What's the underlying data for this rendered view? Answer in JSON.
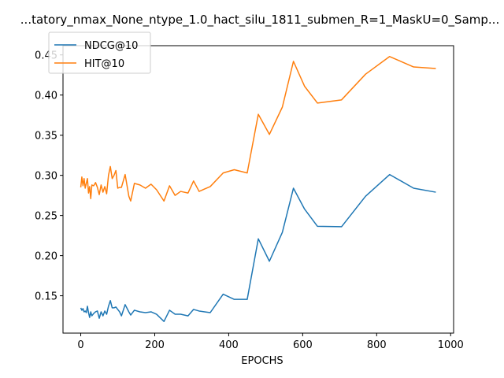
{
  "chart_data": {
    "type": "line",
    "title": "...tatory_nmax_None_ntype_1.0_hact_silu_1811_submen_R=1_MaskU=0_Samp...",
    "xlabel": "EPOCHS",
    "ylabel": "",
    "xlim": [
      -48,
      1008
    ],
    "ylim": [
      0.1035,
      0.4615
    ],
    "xticks": [
      0,
      200,
      400,
      600,
      800,
      1000
    ],
    "yticks": [
      0.15,
      0.2,
      0.25,
      0.3,
      0.35,
      0.4,
      0.45
    ],
    "ytick_labels": [
      "0.15",
      "0.20",
      "0.25",
      "0.30",
      "0.35",
      "0.40",
      "0.45"
    ],
    "grid": false,
    "legend_position": "top-left",
    "series": [
      {
        "name": "NDCG@10",
        "color": "#1f77b4",
        "x": [
          0,
          3,
          6,
          9,
          12,
          15,
          18,
          21,
          24,
          27,
          30,
          35,
          40,
          45,
          50,
          55,
          60,
          65,
          70,
          75,
          80,
          85,
          90,
          95,
          100,
          105,
          110,
          120,
          130,
          135,
          145,
          160,
          175,
          190,
          205,
          225,
          240,
          255,
          270,
          290,
          305,
          320,
          335,
          350,
          385,
          415,
          450,
          480,
          510,
          545,
          575,
          605,
          640,
          705,
          770,
          835,
          900,
          960
        ],
        "y": [
          0.135,
          0.132,
          0.134,
          0.13,
          0.131,
          0.129,
          0.137,
          0.129,
          0.123,
          0.13,
          0.125,
          0.128,
          0.13,
          0.131,
          0.122,
          0.13,
          0.125,
          0.131,
          0.127,
          0.137,
          0.144,
          0.135,
          0.135,
          0.136,
          0.133,
          0.13,
          0.125,
          0.139,
          0.13,
          0.126,
          0.132,
          0.13,
          0.129,
          0.13,
          0.127,
          0.118,
          0.132,
          0.127,
          0.127,
          0.125,
          0.133,
          0.131,
          0.13,
          0.129,
          0.152,
          0.1455,
          0.1455,
          0.221,
          0.193,
          0.229,
          0.284,
          0.258,
          0.2365,
          0.236,
          0.274,
          0.301,
          0.284,
          0.279
        ]
      },
      {
        "name": "HIT@10",
        "color": "#ff7f0e",
        "x": [
          0,
          3,
          6,
          9,
          12,
          15,
          18,
          21,
          24,
          27,
          30,
          35,
          40,
          45,
          50,
          55,
          60,
          65,
          70,
          75,
          80,
          85,
          90,
          95,
          100,
          105,
          110,
          120,
          130,
          135,
          145,
          160,
          175,
          190,
          205,
          225,
          240,
          255,
          270,
          290,
          305,
          320,
          335,
          350,
          385,
          415,
          450,
          480,
          510,
          545,
          575,
          605,
          640,
          705,
          770,
          835,
          900,
          960
        ],
        "y": [
          0.285,
          0.298,
          0.287,
          0.296,
          0.284,
          0.29,
          0.296,
          0.278,
          0.286,
          0.271,
          0.288,
          0.287,
          0.291,
          0.285,
          0.276,
          0.288,
          0.279,
          0.286,
          0.277,
          0.3,
          0.311,
          0.296,
          0.3,
          0.306,
          0.284,
          0.285,
          0.285,
          0.301,
          0.274,
          0.268,
          0.29,
          0.288,
          0.284,
          0.289,
          0.282,
          0.268,
          0.287,
          0.275,
          0.28,
          0.278,
          0.293,
          0.28,
          0.283,
          0.286,
          0.303,
          0.307,
          0.303,
          0.376,
          0.351,
          0.385,
          0.442,
          0.411,
          0.39,
          0.394,
          0.426,
          0.448,
          0.435,
          0.433
        ]
      }
    ]
  }
}
